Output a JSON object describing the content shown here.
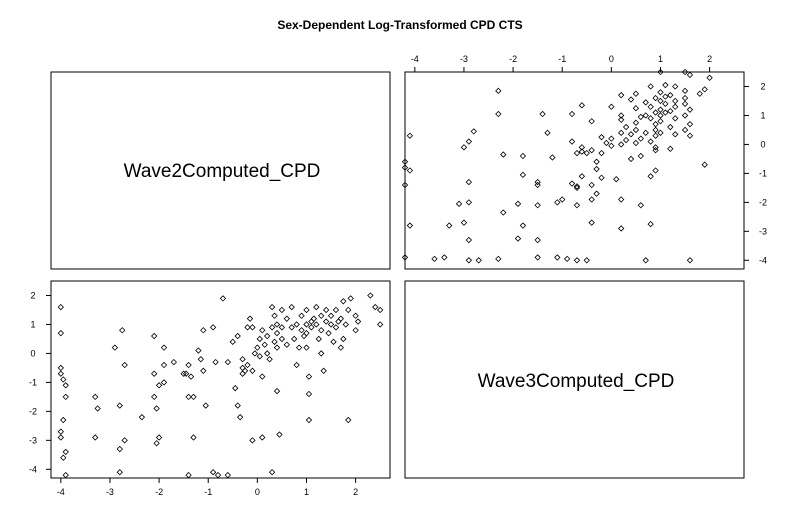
{
  "chart_data": {
    "type": "scatter",
    "title": "Sex-Dependent Log-Transformed CPD CTS",
    "variables": [
      "Wave2Computed_CPD",
      "Wave3Computed_CPD"
    ],
    "x_ticks": [
      "-4",
      "-3",
      "-2",
      "-1",
      "0",
      "1",
      "2"
    ],
    "y_ticks": [
      "-4",
      "-3",
      "-2",
      "-1",
      "0",
      "1",
      "2"
    ],
    "xlim": [
      -4.2,
      2.7
    ],
    "ylim": [
      -4.3,
      2.5
    ],
    "marker": "open-diamond",
    "points_lower_panel": [
      [
        -4.0,
        1.6
      ],
      [
        -4.0,
        0.7
      ],
      [
        -4.0,
        -0.5
      ],
      [
        -4.0,
        -0.7
      ],
      [
        -3.95,
        -0.9
      ],
      [
        -3.9,
        -1.1
      ],
      [
        -3.9,
        -1.5
      ],
      [
        -3.95,
        -2.3
      ],
      [
        -4.0,
        -2.7
      ],
      [
        -4.0,
        -2.9
      ],
      [
        -3.9,
        -3.4
      ],
      [
        -3.95,
        -3.6
      ],
      [
        -3.9,
        -4.2
      ],
      [
        -3.3,
        -1.5
      ],
      [
        -3.25,
        -1.9
      ],
      [
        -3.3,
        -2.9
      ],
      [
        -2.9,
        0.2
      ],
      [
        -2.8,
        -1.8
      ],
      [
        -2.7,
        -0.4
      ],
      [
        -2.7,
        -3.0
      ],
      [
        -2.75,
        0.8
      ],
      [
        -2.8,
        -3.3
      ],
      [
        -2.8,
        -4.1
      ],
      [
        -2.35,
        -2.2
      ],
      [
        -2.1,
        0.6
      ],
      [
        -2.1,
        -0.7
      ],
      [
        -2.1,
        -1.5
      ],
      [
        -2.05,
        -1.9
      ],
      [
        -2.0,
        -1.1
      ],
      [
        -2.0,
        -2.9
      ],
      [
        -2.05,
        -3.1
      ],
      [
        -1.9,
        0.2
      ],
      [
        -1.9,
        -0.4
      ],
      [
        -1.9,
        -1.0
      ],
      [
        -1.7,
        -0.3
      ],
      [
        -1.5,
        -0.7
      ],
      [
        -1.45,
        -0.7
      ],
      [
        -1.4,
        -0.4
      ],
      [
        -1.35,
        -0.8
      ],
      [
        -1.3,
        -1.5
      ],
      [
        -1.4,
        -1.5
      ],
      [
        -1.3,
        -2.9
      ],
      [
        -1.4,
        -4.2
      ],
      [
        -1.2,
        0.1
      ],
      [
        -1.15,
        -0.2
      ],
      [
        -1.1,
        -0.6
      ],
      [
        -1.1,
        0.8
      ],
      [
        -1.05,
        -1.8
      ],
      [
        -0.9,
        0.9
      ],
      [
        -0.9,
        -4.1
      ],
      [
        -0.85,
        -0.3
      ],
      [
        -0.8,
        -4.2
      ],
      [
        -0.7,
        1.9
      ],
      [
        -0.6,
        -0.3
      ],
      [
        -0.6,
        -4.2
      ],
      [
        -0.5,
        0.4
      ],
      [
        -0.4,
        0.6
      ],
      [
        -0.45,
        -1.2
      ],
      [
        -0.4,
        -1.8
      ],
      [
        -0.35,
        -2.2
      ],
      [
        -0.3,
        -0.7
      ],
      [
        -0.3,
        -0.5
      ],
      [
        -0.3,
        -0.2
      ],
      [
        -0.25,
        -0.6
      ],
      [
        -0.2,
        0.9
      ],
      [
        -0.2,
        -0.4
      ],
      [
        -0.15,
        1.2
      ],
      [
        -0.1,
        0.9
      ],
      [
        -0.1,
        -0.6
      ],
      [
        -0.05,
        0.0
      ],
      [
        -0.1,
        -3.0
      ],
      [
        0.0,
        0.2
      ],
      [
        0.05,
        0.5
      ],
      [
        0.05,
        -0.1
      ],
      [
        0.1,
        0.8
      ],
      [
        0.1,
        -0.8
      ],
      [
        0.1,
        -2.9
      ],
      [
        0.15,
        0.3
      ],
      [
        0.2,
        0.6
      ],
      [
        0.2,
        0.0
      ],
      [
        0.25,
        -0.2
      ],
      [
        0.3,
        0.9
      ],
      [
        0.3,
        1.6
      ],
      [
        0.3,
        -4.1
      ],
      [
        0.35,
        1.3
      ],
      [
        0.35,
        0.4
      ],
      [
        0.4,
        1.0
      ],
      [
        0.4,
        0.7
      ],
      [
        0.4,
        0.2
      ],
      [
        0.4,
        -1.3
      ],
      [
        0.45,
        -2.8
      ],
      [
        0.5,
        1.5
      ],
      [
        0.5,
        0.9
      ],
      [
        0.5,
        0.5
      ],
      [
        0.6,
        1.2
      ],
      [
        0.6,
        0.3
      ],
      [
        0.7,
        0.9
      ],
      [
        0.7,
        1.6
      ],
      [
        0.75,
        0.5
      ],
      [
        0.8,
        1.0
      ],
      [
        0.8,
        -0.4
      ],
      [
        0.85,
        0.2
      ],
      [
        0.9,
        1.3
      ],
      [
        0.9,
        0.8
      ],
      [
        0.95,
        0.6
      ],
      [
        1.0,
        1.5
      ],
      [
        1.0,
        1.0
      ],
      [
        1.0,
        0.7
      ],
      [
        1.0,
        0.2
      ],
      [
        1.05,
        -0.8
      ],
      [
        1.05,
        -1.4
      ],
      [
        1.05,
        -2.3
      ],
      [
        1.1,
        1.1
      ],
      [
        1.1,
        0.9
      ],
      [
        1.15,
        1.2
      ],
      [
        1.2,
        1.0
      ],
      [
        1.2,
        1.6
      ],
      [
        1.25,
        0.5
      ],
      [
        1.3,
        1.3
      ],
      [
        1.3,
        0.8
      ],
      [
        1.3,
        0.0
      ],
      [
        1.35,
        -0.6
      ],
      [
        1.4,
        1.5
      ],
      [
        1.4,
        1.1
      ],
      [
        1.45,
        0.7
      ],
      [
        1.5,
        1.0
      ],
      [
        1.5,
        1.3
      ],
      [
        1.55,
        0.4
      ],
      [
        1.6,
        1.5
      ],
      [
        1.6,
        0.9
      ],
      [
        1.7,
        1.2
      ],
      [
        1.7,
        0.2
      ],
      [
        1.75,
        1.8
      ],
      [
        1.75,
        0.5
      ],
      [
        1.8,
        1.0
      ],
      [
        1.85,
        1.5
      ],
      [
        1.85,
        -2.3
      ],
      [
        1.9,
        1.9
      ],
      [
        2.0,
        1.3
      ],
      [
        2.0,
        0.8
      ],
      [
        2.05,
        1.1
      ],
      [
        2.3,
        2.0
      ],
      [
        2.4,
        1.6
      ],
      [
        2.5,
        1.5
      ],
      [
        2.5,
        1.0
      ],
      [
        1.65,
        1.1
      ]
    ]
  }
}
